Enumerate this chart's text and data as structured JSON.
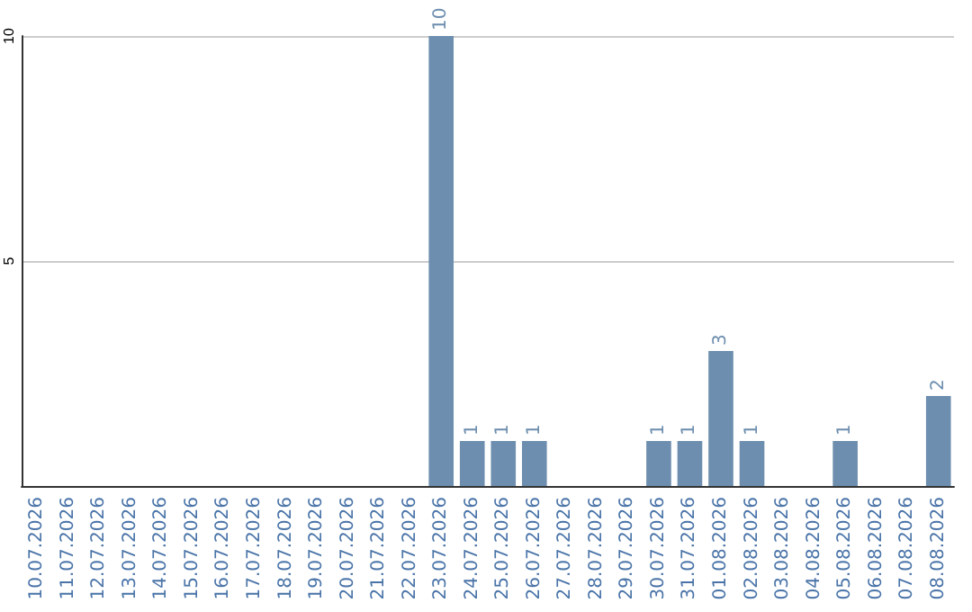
{
  "chart_data": {
    "type": "bar",
    "categories": [
      "10.07.2026",
      "11.07.2026",
      "12.07.2026",
      "13.07.2026",
      "14.07.2026",
      "15.07.2026",
      "16.07.2026",
      "17.07.2026",
      "18.07.2026",
      "19.07.2026",
      "20.07.2026",
      "21.07.2026",
      "22.07.2026",
      "23.07.2026",
      "24.07.2026",
      "25.07.2026",
      "26.07.2026",
      "27.07.2026",
      "28.07.2026",
      "29.07.2026",
      "30.07.2026",
      "31.07.2026",
      "01.08.2026",
      "02.08.2026",
      "03.08.2026",
      "04.08.2026",
      "05.08.2026",
      "06.08.2026",
      "07.08.2026",
      "08.08.2026"
    ],
    "values": [
      0,
      0,
      0,
      0,
      0,
      0,
      0,
      0,
      0,
      0,
      0,
      0,
      0,
      10,
      1,
      1,
      1,
      0,
      0,
      0,
      1,
      1,
      3,
      1,
      0,
      0,
      1,
      0,
      0,
      2
    ],
    "value_labels": [
      null,
      null,
      null,
      null,
      null,
      null,
      null,
      null,
      null,
      null,
      null,
      null,
      null,
      "10",
      "1",
      "1",
      "1",
      null,
      null,
      null,
      "1",
      "1",
      "3",
      "1",
      null,
      null,
      "1",
      null,
      null,
      "2"
    ],
    "color": "#6d8eae",
    "ylim": [
      0,
      10
    ],
    "yticks": [
      {
        "value": 0,
        "label": null
      },
      5,
      10
    ],
    "grid": "y"
  }
}
